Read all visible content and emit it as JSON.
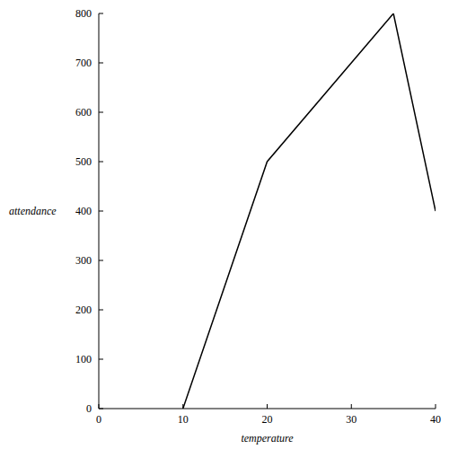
{
  "chart_data": {
    "type": "line",
    "x_label": "temperature",
    "y_label": "attendance",
    "x": [
      10,
      20,
      35,
      40
    ],
    "values": [
      0,
      500,
      800,
      400
    ],
    "color": "#000000",
    "xlim": [
      0,
      40
    ],
    "xticks": [
      0,
      10,
      20,
      30,
      40
    ],
    "ylim": [
      0,
      800
    ],
    "yticks": [
      0,
      100,
      200,
      300,
      400,
      500,
      600,
      700,
      800
    ],
    "grid": false
  }
}
